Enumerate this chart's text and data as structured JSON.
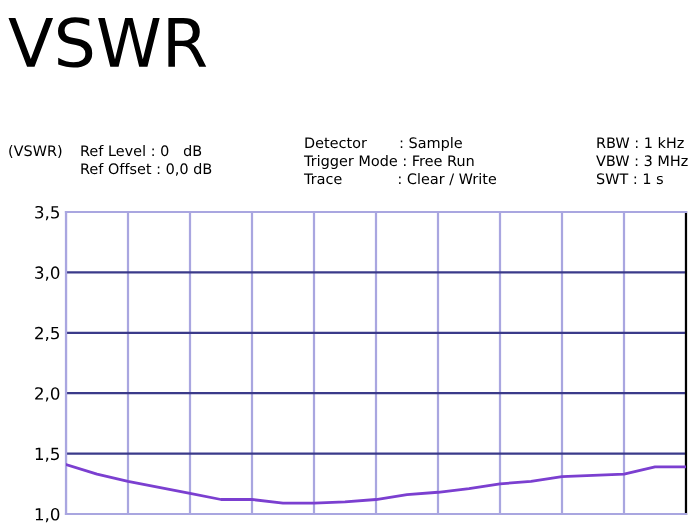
{
  "chart_data": {
    "type": "line",
    "title": "VSWR",
    "annotations": [
      "(VSWR)",
      "Ref Level : 0   dB",
      "Ref Offset : 0,0 dB",
      "Detector       : Sample",
      "Trigger Mode : Free Run",
      "Trace            : Clear / Write",
      "RBW : 1 kHz",
      "VBW : 3 MHz",
      "SWT : 1 s"
    ],
    "categories": [
      null,
      null,
      null,
      null,
      null,
      null,
      null,
      null,
      null,
      null,
      null,
      null,
      null,
      null,
      null,
      null,
      null,
      null,
      null,
      null,
      null
    ],
    "series": [
      {
        "color": "#7b3fd0",
        "values": [
          1.41,
          1.33,
          1.27,
          1.22,
          1.17,
          1.12,
          1.12,
          1.09,
          1.09,
          1.1,
          1.12,
          1.16,
          1.18,
          1.21,
          1.25,
          1.27,
          1.31,
          1.32,
          1.33,
          1.39,
          1.39
        ]
      }
    ],
    "ylim": [
      1.0,
      3.5
    ],
    "yticks": [
      {
        "value": 1.0,
        "label": "1,0"
      },
      {
        "value": 1.5,
        "label": "1,5"
      },
      {
        "value": 2.0,
        "label": "2,0"
      },
      {
        "value": 2.5,
        "label": "2,5"
      },
      {
        "value": 3.0,
        "label": "3,0"
      },
      {
        "value": 3.5,
        "label": "3,5"
      }
    ],
    "grid": true,
    "tick_labels": "y",
    "marker": "none",
    "line_style": "solid"
  }
}
